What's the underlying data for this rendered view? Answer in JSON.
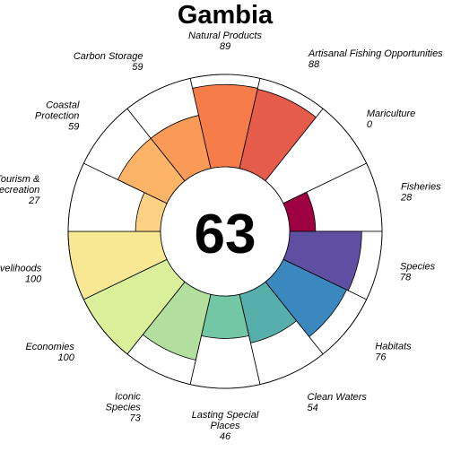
{
  "chart_data": {
    "type": "flower",
    "title": "Gambia",
    "overall_score": "63",
    "ylim": [
      0,
      100
    ],
    "petals": [
      {
        "name": "Natural Products",
        "label_lines": [
          "Natural Products"
        ],
        "value": 89,
        "color": "#F67C4A"
      },
      {
        "name": "Artisanal Fishing Opportunities",
        "label_lines": [
          "Artisanal Fishing Opportunities"
        ],
        "value": 88,
        "color": "#E55C4B"
      },
      {
        "name": "Mariculture",
        "label_lines": [
          "Mariculture"
        ],
        "value": 0,
        "color": "#D53E4F"
      },
      {
        "name": "Fisheries",
        "label_lines": [
          "Fisheries"
        ],
        "value": 28,
        "color": "#9E0142"
      },
      {
        "name": "Species",
        "label_lines": [
          "Species"
        ],
        "value": 78,
        "color": "#5E4FA2"
      },
      {
        "name": "Habitats",
        "label_lines": [
          "Habitats"
        ],
        "value": 76,
        "color": "#3A88BD"
      },
      {
        "name": "Clean Waters",
        "label_lines": [
          "Clean Waters"
        ],
        "value": 54,
        "color": "#57AFAB"
      },
      {
        "name": "Lasting Special Places",
        "label_lines": [
          "Lasting Special",
          "Places"
        ],
        "value": 46,
        "color": "#73C7A4"
      },
      {
        "name": "Iconic Species",
        "label_lines": [
          "Iconic",
          "Species"
        ],
        "value": 73,
        "color": "#B2DF9E"
      },
      {
        "name": "Economies",
        "label_lines": [
          "Economies"
        ],
        "value": 100,
        "color": "#DAF09A"
      },
      {
        "name": "Livelihoods",
        "label_lines": [
          "Livelihoods"
        ],
        "value": 100,
        "color": "#F8E793"
      },
      {
        "name": "Tourism & Recreation",
        "label_lines": [
          "Tourism &",
          "Recreation"
        ],
        "value": 27,
        "color": "#FDD183"
      },
      {
        "name": "Coastal Protection",
        "label_lines": [
          "Coastal",
          "Protection"
        ],
        "value": 59,
        "color": "#FDB466"
      },
      {
        "name": "Carbon Storage",
        "label_lines": [
          "Carbon Storage"
        ],
        "value": 59,
        "color": "#FA9A57"
      }
    ]
  }
}
